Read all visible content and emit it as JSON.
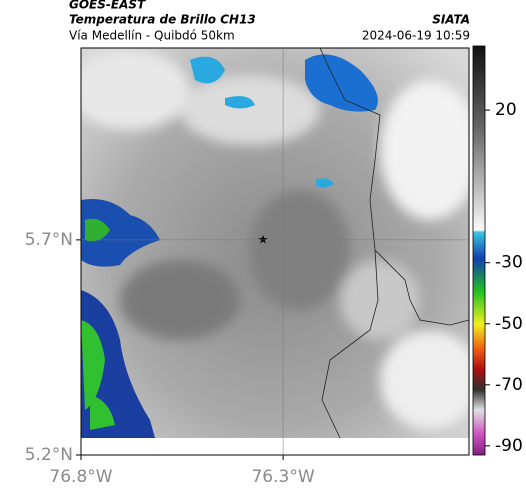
{
  "header": {
    "source": "GOES-EAST",
    "title": "Temperatura de Brillo CH13",
    "org": "SIATA",
    "subtitle": "Vía Medellín - Quibdó 50km",
    "datetime": "2024-06-19 10:59"
  },
  "map": {
    "latlim": [
      5.2,
      6.146
    ],
    "lonlim": [
      -76.8,
      -75.84
    ],
    "yticks": [
      {
        "value": 5.7,
        "label": "5.7°N"
      },
      {
        "value": 5.2,
        "label": "5.2°N"
      }
    ],
    "xticks": [
      {
        "value": -76.8,
        "label": "76.8°W"
      },
      {
        "value": -76.3,
        "label": "76.3°W"
      }
    ]
  },
  "colorbar": {
    "range": [
      -93,
      41
    ],
    "ticks": [
      20,
      -30,
      -50,
      -70,
      -90
    ]
  }
}
